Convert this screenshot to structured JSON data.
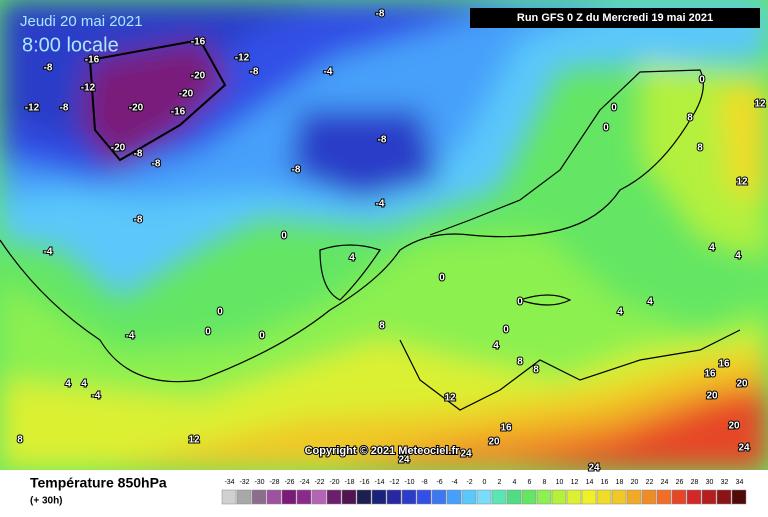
{
  "map": {
    "date": "Jeudi 20 mai 2021",
    "time": "8:00 locale",
    "run": "Run GFS 0 Z du Mercredi 19 mai 2021",
    "copyright": "Copyright © 2021 Meteociel.fr",
    "contour_labels": [
      -16,
      -16,
      -12,
      -8,
      -8,
      -12,
      -20,
      -20,
      -8,
      -4,
      -12,
      -8,
      -20,
      -16,
      -20,
      -8,
      -8,
      -8,
      -8,
      -8,
      -4,
      -4,
      0,
      4,
      -4,
      0,
      0,
      0,
      8,
      4,
      4,
      -4,
      8,
      12,
      12,
      16,
      20,
      24,
      24,
      24,
      16,
      16,
      20,
      20,
      20,
      24,
      12,
      12,
      8,
      4,
      4,
      0,
      0,
      0,
      0,
      4,
      4,
      8,
      8,
      4,
      0,
      0,
      8
    ],
    "legend": {
      "title": "Température 850hPa",
      "lead": "(+ 30h)",
      "scale": [
        -34,
        -32,
        -30,
        -28,
        -26,
        -24,
        -22,
        -20,
        -18,
        -16,
        -14,
        -12,
        -10,
        -8,
        -6,
        -4,
        -2,
        0,
        2,
        4,
        6,
        8,
        10,
        12,
        14,
        16,
        18,
        20,
        22,
        24,
        26,
        28,
        30,
        32,
        34
      ],
      "colors": [
        "#d0d0d0",
        "#a8a8a8",
        "#8c6d8c",
        "#a050a0",
        "#7a1a7a",
        "#8c2a8c",
        "#b464b4",
        "#6e1e6e",
        "#501450",
        "#1e1e50",
        "#1a237a",
        "#2828a0",
        "#2a3cc8",
        "#3250e6",
        "#3c78f0",
        "#46a0fa",
        "#5ac8fa",
        "#78dcfa",
        "#5ae6b4",
        "#50dc82",
        "#64e664",
        "#8cf050",
        "#b4f03c",
        "#dcf032",
        "#f0f028",
        "#f0dc28",
        "#f0c828",
        "#f0aa28",
        "#f08c28",
        "#f06e28",
        "#e64628",
        "#d22828",
        "#b41e1e",
        "#8c1414",
        "#500a0a"
      ]
    }
  }
}
